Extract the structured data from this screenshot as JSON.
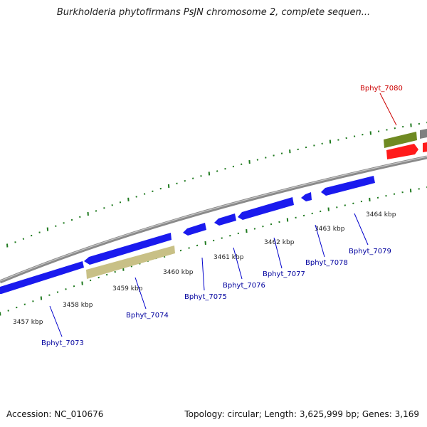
{
  "title": "Burkholderia phytofirmans PsJN chromosome 2, complete sequen...",
  "footer": {
    "accession": "Accession: NC_010676",
    "summary": "Topology: circular; Length: 3,625,999 bp; Genes: 3,169"
  },
  "colors": {
    "backbone": "#8a8a8a",
    "forward_gene": "#1a1aee",
    "highlight_gene": "#ff1a1a",
    "feature_olive": "#6f8a22",
    "feature_khaki": "#c8c086",
    "tick": "#1f7a1f",
    "label_blue": "#00009e",
    "label_red": "#cc0000"
  },
  "scale_labels": [
    "3457 kbp",
    "3458 kbp",
    "3459 kbp",
    "3460 kbp",
    "3461 kbp",
    "3462 kbp",
    "3463 kbp",
    "3464 kbp"
  ],
  "genes": [
    {
      "name": "Bphyt_7073",
      "color": "blue"
    },
    {
      "name": "Bphyt_7074",
      "color": "blue"
    },
    {
      "name": "Bphyt_7075",
      "color": "blue"
    },
    {
      "name": "Bphyt_7076",
      "color": "blue"
    },
    {
      "name": "Bphyt_7077",
      "color": "blue"
    },
    {
      "name": "Bphyt_7078",
      "color": "blue"
    },
    {
      "name": "Bphyt_7079",
      "color": "blue"
    },
    {
      "name": "Bphyt_7080",
      "color": "red"
    }
  ]
}
